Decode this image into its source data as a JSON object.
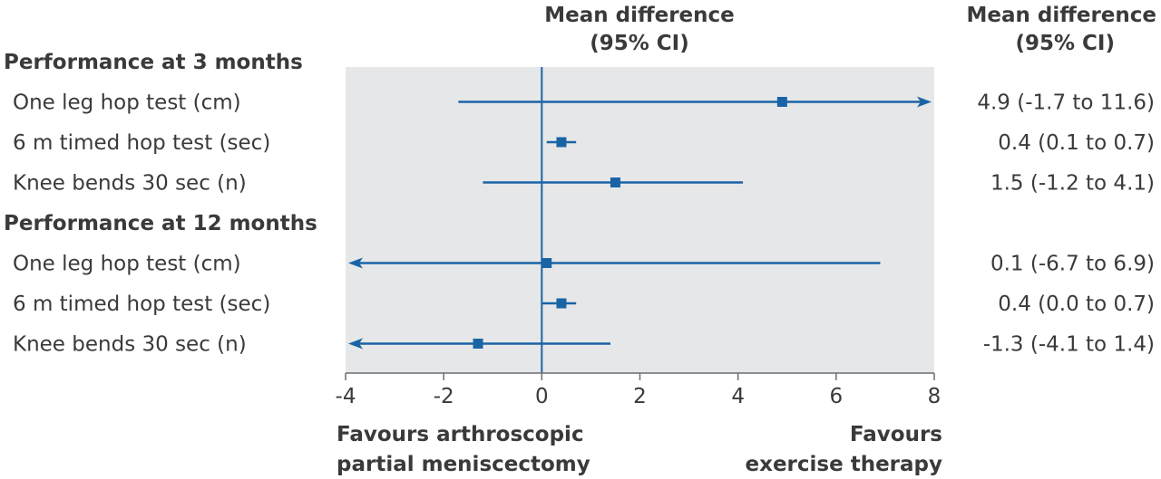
{
  "chart_data": {
    "type": "forest",
    "column_header_plot": [
      "Mean difference",
      "(95% CI)"
    ],
    "column_header_right": [
      "Mean difference",
      "(95% CI)"
    ],
    "groups": [
      {
        "label": "Performance at 3 months",
        "rows": [
          {
            "label": "One leg hop test (cm)",
            "mean": 4.9,
            "lower": -1.7,
            "upper": 11.6,
            "text": "4.9 (-1.7 to 11.6)"
          },
          {
            "label": "6 m timed hop test (sec)",
            "mean": 0.4,
            "lower": 0.1,
            "upper": 0.7,
            "text": "0.4 (0.1 to 0.7)"
          },
          {
            "label": "Knee bends 30 sec (n)",
            "mean": 1.5,
            "lower": -1.2,
            "upper": 4.1,
            "text": "1.5 (-1.2 to 4.1)"
          }
        ]
      },
      {
        "label": "Performance at 12 months",
        "rows": [
          {
            "label": "One leg hop test (cm)",
            "mean": 0.1,
            "lower": -6.7,
            "upper": 6.9,
            "text": "0.1 (-6.7 to 6.9)"
          },
          {
            "label": "6 m timed hop test (sec)",
            "mean": 0.4,
            "lower": 0.0,
            "upper": 0.7,
            "text": "0.4 (0.0 to 0.7)"
          },
          {
            "label": "Knee bends 30 sec (n)",
            "mean": -1.3,
            "lower": -4.1,
            "upper": 1.4,
            "text": "-1.3 (-4.1 to 1.4)"
          }
        ]
      }
    ],
    "xlim": [
      -4,
      8
    ],
    "xticks": [
      "-4",
      "-2",
      "0",
      "2",
      "4",
      "6",
      "8"
    ],
    "null_line": 0,
    "favours_left": [
      "Favours arthroscopic",
      "partial meniscectomy"
    ],
    "favours_right": [
      "Favours",
      "exercise therapy"
    ],
    "colors": {
      "marker": "#1a64a6",
      "panel": "#e6e7e8",
      "text": "#3a3a3a",
      "axis": "#6d6e70"
    }
  }
}
